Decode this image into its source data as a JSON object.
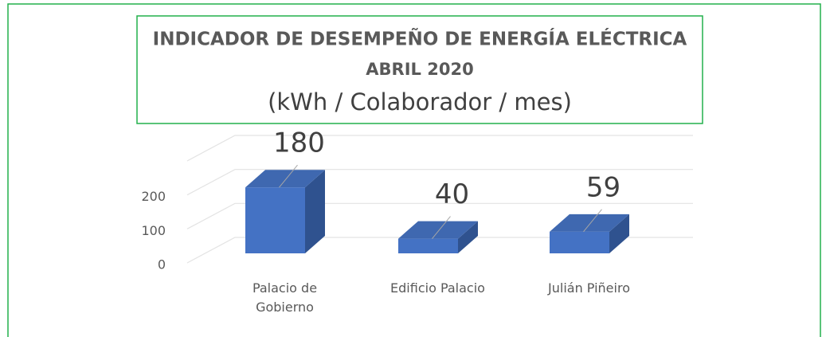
{
  "chart_data": {
    "type": "bar3d",
    "title": "INDICADOR DE DESEMPEÑO DE ENERGÍA ELÉCTRICA",
    "subtitle": "ABRIL 2020",
    "unit_label": "(kWh / Colaborador / mes)",
    "categories": [
      "Palacio de Gobierno",
      "Edificio Palacio",
      "Julián Piñeiro"
    ],
    "values": [
      180,
      40,
      59
    ],
    "color": "#4472c4",
    "ylim": [
      0,
      300
    ],
    "yticks": [
      0,
      100,
      200
    ],
    "grid": true
  }
}
